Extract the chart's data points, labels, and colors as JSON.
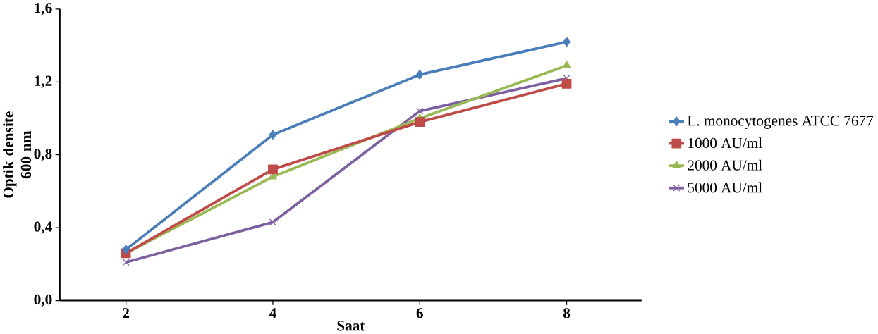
{
  "chart_data": {
    "type": "line",
    "xlabel": "Saat",
    "ylabel": "Optik densite 600 nm",
    "categories": [
      "2",
      "4",
      "6",
      "8"
    ],
    "ylim": [
      0,
      1.6
    ],
    "yticks": [
      {
        "value": 0,
        "label": "0,0"
      },
      {
        "value": 0.4,
        "label": "0,4"
      },
      {
        "value": 0.8,
        "label": "0,8"
      },
      {
        "value": 1.2,
        "label": "1,2"
      },
      {
        "value": 1.6,
        "label": "1,6"
      }
    ],
    "legend": "right",
    "grid": false,
    "line_style": "solid",
    "series": [
      {
        "name": "L. monocytogenes ATCC 7677",
        "color": "#4a7ebb",
        "marker": "diamond",
        "values": [
          0.28,
          0.91,
          1.24,
          1.42
        ]
      },
      {
        "name": "1000 AU/ml",
        "color": "#be4b48",
        "marker": "square",
        "values": [
          0.26,
          0.72,
          0.98,
          1.19
        ]
      },
      {
        "name": "2000  AU/ml",
        "color": "#98b954",
        "marker": "triangle",
        "values": [
          0.26,
          0.68,
          1.0,
          1.29
        ]
      },
      {
        "name": "5000  AU/ml",
        "color": "#7d60a0",
        "marker": "cross",
        "values": [
          0.21,
          0.43,
          1.04,
          1.22
        ]
      }
    ]
  }
}
